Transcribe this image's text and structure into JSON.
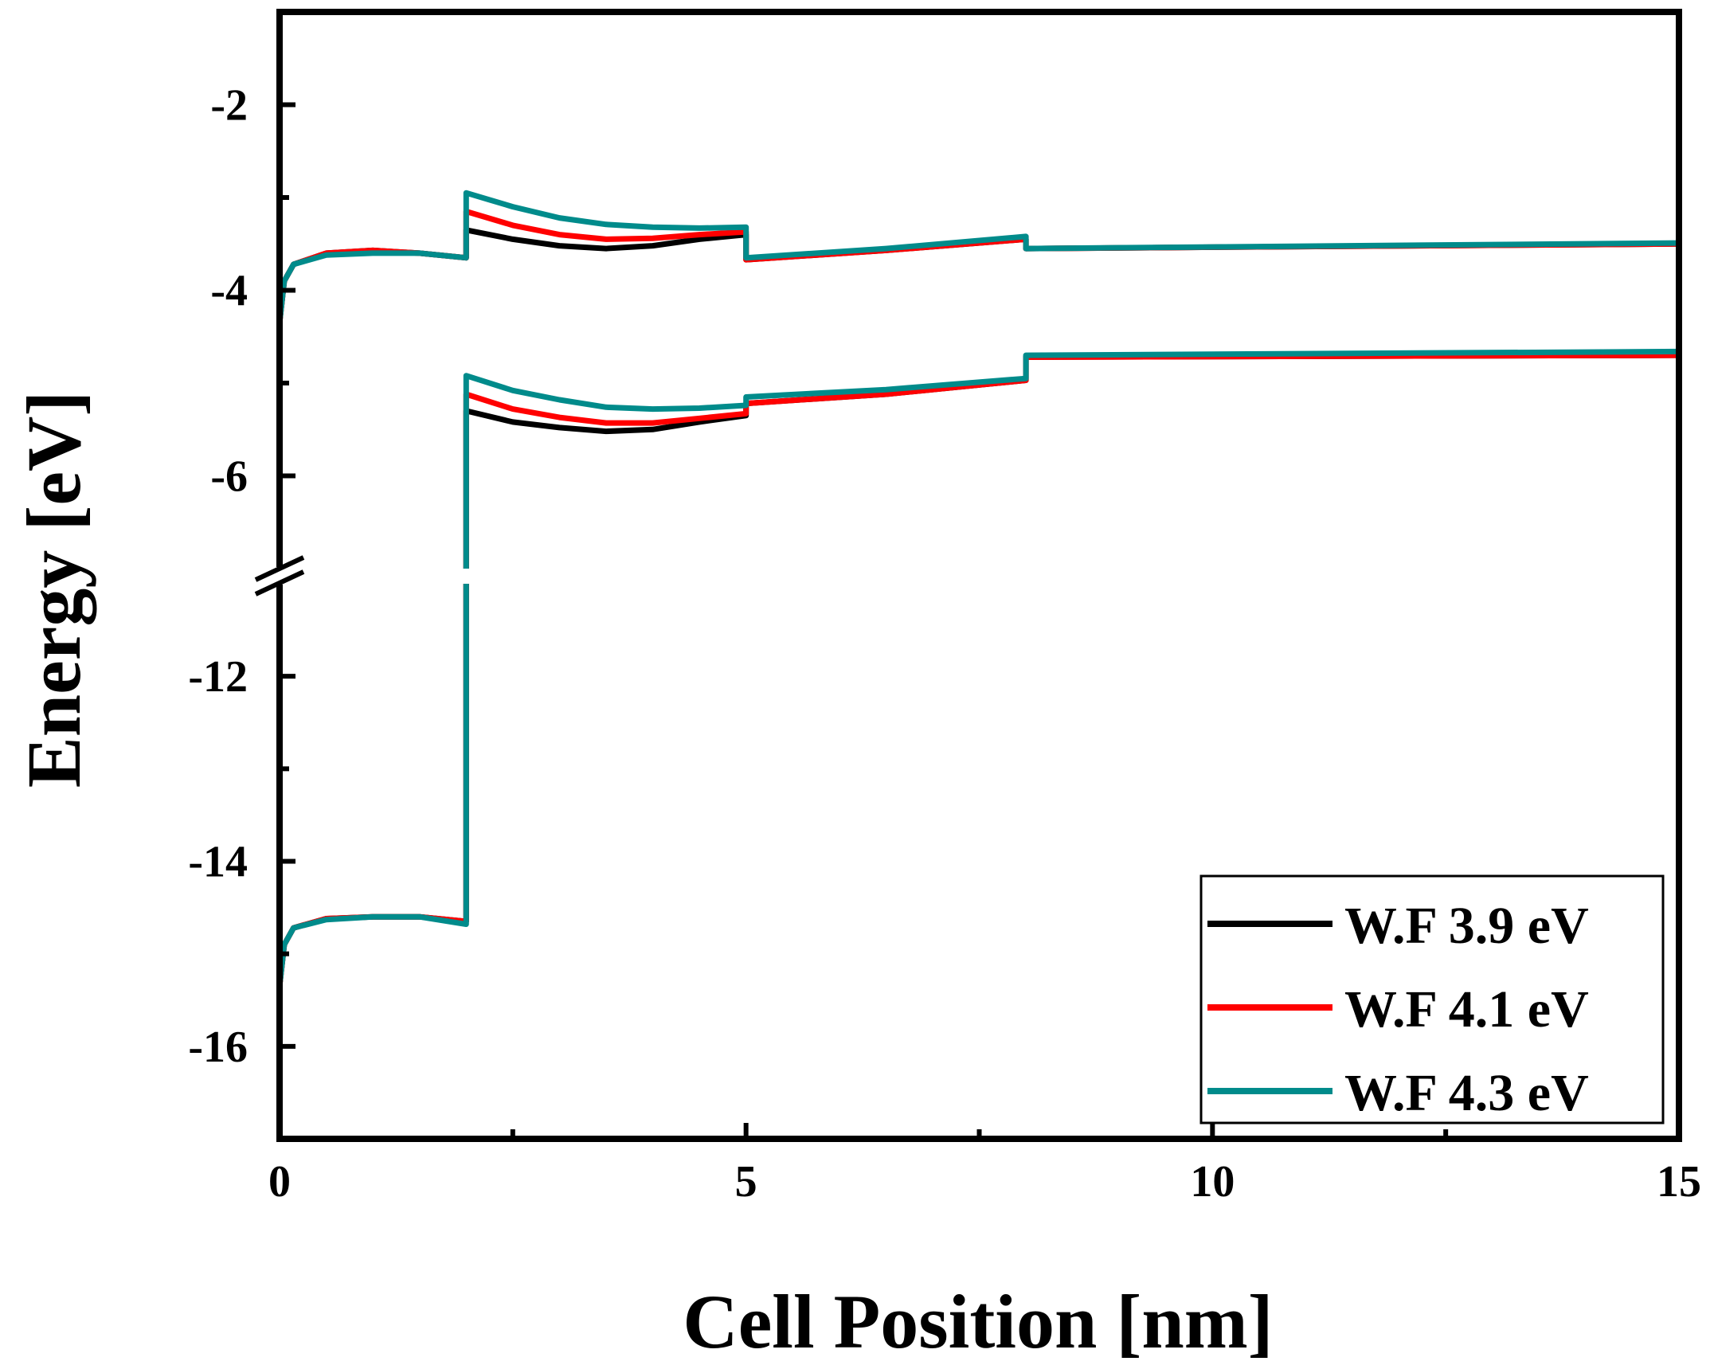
{
  "chart_data": {
    "type": "line",
    "xlabel": "Cell Position [nm]",
    "ylabel": "Energy [eV]",
    "xlim": [
      0,
      15
    ],
    "ylim_upper": [
      -7,
      -1
    ],
    "ylim_lower": [
      -17,
      -11
    ],
    "axis_break": "between -7 and -11 on y axis",
    "x_ticks": [
      "0",
      "5",
      "10",
      "15"
    ],
    "y_ticks_upper": [
      "-2",
      "-4",
      "-6"
    ],
    "y_ticks_lower": [
      "-12",
      "-14",
      "-16"
    ],
    "legend_position": "bottom-right",
    "colors": {
      "wf39": "#000000",
      "wf41": "#ff0000",
      "wf43": "#008b8b"
    },
    "series": [
      {
        "name": "W.F 3.9 eV",
        "color_key": "wf39",
        "conduction_band": [
          [
            0,
            -4.35
          ],
          [
            0.05,
            -3.9
          ],
          [
            0.15,
            -3.72
          ],
          [
            0.5,
            -3.6
          ],
          [
            1.0,
            -3.57
          ],
          [
            1.5,
            -3.6
          ],
          [
            2.0,
            -3.65
          ],
          [
            2.0,
            -3.35
          ],
          [
            2.5,
            -3.45
          ],
          [
            3.0,
            -3.52
          ],
          [
            3.5,
            -3.55
          ],
          [
            4.0,
            -3.52
          ],
          [
            4.5,
            -3.45
          ],
          [
            5.0,
            -3.4
          ],
          [
            5.0,
            -3.67
          ],
          [
            6.5,
            -3.57
          ],
          [
            8.0,
            -3.45
          ],
          [
            8.0,
            -3.55
          ],
          [
            15.0,
            -3.5
          ]
        ],
        "valence_band": [
          [
            0,
            -15.35
          ],
          [
            0.05,
            -14.9
          ],
          [
            0.15,
            -14.72
          ],
          [
            0.5,
            -14.62
          ],
          [
            1.0,
            -14.6
          ],
          [
            1.5,
            -14.6
          ],
          [
            2.0,
            -14.65
          ],
          [
            2.0,
            -5.3
          ],
          [
            2.5,
            -5.42
          ],
          [
            3.0,
            -5.48
          ],
          [
            3.5,
            -5.52
          ],
          [
            4.0,
            -5.5
          ],
          [
            4.5,
            -5.42
          ],
          [
            5.0,
            -5.35
          ],
          [
            5.0,
            -5.22
          ],
          [
            6.5,
            -5.12
          ],
          [
            8.0,
            -4.97
          ],
          [
            8.0,
            -4.72
          ],
          [
            15.0,
            -4.7
          ]
        ]
      },
      {
        "name": "W.F 4.1 eV",
        "color_key": "wf41",
        "conduction_band": [
          [
            0,
            -4.35
          ],
          [
            0.05,
            -3.9
          ],
          [
            0.15,
            -3.72
          ],
          [
            0.5,
            -3.6
          ],
          [
            1.0,
            -3.57
          ],
          [
            1.5,
            -3.6
          ],
          [
            2.0,
            -3.65
          ],
          [
            2.0,
            -3.15
          ],
          [
            2.5,
            -3.3
          ],
          [
            3.0,
            -3.4
          ],
          [
            3.5,
            -3.45
          ],
          [
            4.0,
            -3.44
          ],
          [
            4.5,
            -3.4
          ],
          [
            5.0,
            -3.37
          ],
          [
            5.0,
            -3.67
          ],
          [
            6.5,
            -3.57
          ],
          [
            8.0,
            -3.45
          ],
          [
            8.0,
            -3.55
          ],
          [
            15.0,
            -3.5
          ]
        ],
        "valence_band": [
          [
            0,
            -15.35
          ],
          [
            0.05,
            -14.9
          ],
          [
            0.15,
            -14.72
          ],
          [
            0.5,
            -14.62
          ],
          [
            1.0,
            -14.6
          ],
          [
            1.5,
            -14.6
          ],
          [
            2.0,
            -14.65
          ],
          [
            2.0,
            -5.12
          ],
          [
            2.5,
            -5.28
          ],
          [
            3.0,
            -5.37
          ],
          [
            3.5,
            -5.43
          ],
          [
            4.0,
            -5.43
          ],
          [
            4.5,
            -5.38
          ],
          [
            5.0,
            -5.33
          ],
          [
            5.0,
            -5.22
          ],
          [
            6.5,
            -5.12
          ],
          [
            8.0,
            -4.97
          ],
          [
            8.0,
            -4.72
          ],
          [
            15.0,
            -4.7
          ]
        ]
      },
      {
        "name": "W.F 4.3 eV",
        "color_key": "wf43",
        "conduction_band": [
          [
            0,
            -4.35
          ],
          [
            0.05,
            -3.9
          ],
          [
            0.15,
            -3.72
          ],
          [
            0.5,
            -3.62
          ],
          [
            1.0,
            -3.6
          ],
          [
            1.5,
            -3.6
          ],
          [
            2.0,
            -3.65
          ],
          [
            2.0,
            -2.95
          ],
          [
            2.5,
            -3.1
          ],
          [
            3.0,
            -3.22
          ],
          [
            3.5,
            -3.29
          ],
          [
            4.0,
            -3.32
          ],
          [
            4.5,
            -3.33
          ],
          [
            5.0,
            -3.32
          ],
          [
            5.0,
            -3.65
          ],
          [
            6.5,
            -3.55
          ],
          [
            8.0,
            -3.42
          ],
          [
            8.0,
            -3.55
          ],
          [
            15.0,
            -3.49
          ]
        ],
        "valence_band": [
          [
            0,
            -15.35
          ],
          [
            0.05,
            -14.9
          ],
          [
            0.15,
            -14.72
          ],
          [
            0.5,
            -14.63
          ],
          [
            1.0,
            -14.6
          ],
          [
            1.5,
            -14.6
          ],
          [
            2.0,
            -14.68
          ],
          [
            2.0,
            -4.92
          ],
          [
            2.5,
            -5.08
          ],
          [
            3.0,
            -5.18
          ],
          [
            3.5,
            -5.26
          ],
          [
            4.0,
            -5.28
          ],
          [
            4.5,
            -5.27
          ],
          [
            5.0,
            -5.24
          ],
          [
            5.0,
            -5.15
          ],
          [
            6.5,
            -5.07
          ],
          [
            8.0,
            -4.95
          ],
          [
            8.0,
            -4.7
          ],
          [
            15.0,
            -4.66
          ]
        ]
      }
    ]
  }
}
